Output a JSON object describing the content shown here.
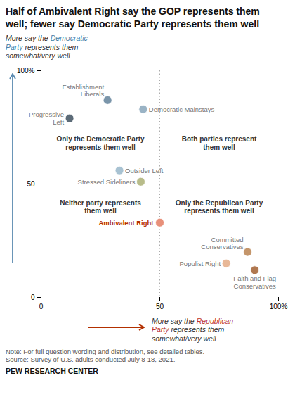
{
  "chart_data": {
    "type": "scatter",
    "title": "Half of Ambivalent Right say the GOP represents them\nwell; fewer say Democratic Party represents them well",
    "points": [
      {
        "label": "Progressive\nLeft",
        "x": 12,
        "y": 79,
        "color": "#5c6b78"
      },
      {
        "label": "Establishment\nLiberals",
        "x": 28,
        "y": 87,
        "color": "#7a95aa"
      },
      {
        "label": "Democratic Mainstays",
        "x": 43,
        "y": 83,
        "color": "#9ab3c5"
      },
      {
        "label": "Outsider Left",
        "x": 33,
        "y": 56,
        "color": "#a8c2d2"
      },
      {
        "label": "Stressed Sideliners",
        "x": 42,
        "y": 51,
        "color": "#b8bc8a"
      },
      {
        "label": "Ambivalent Right",
        "x": 50,
        "y": 33,
        "color": "#e8907a",
        "highlight": true
      },
      {
        "label": "Committed\nConservatives",
        "x": 87,
        "y": 20,
        "color": "#c4956a"
      },
      {
        "label": "Populist Right",
        "x": 78,
        "y": 15,
        "color": "#e8b898"
      },
      {
        "label": "Faith and Flag\nConservatives",
        "x": 90,
        "y": 12,
        "color": "#b07850"
      }
    ],
    "highlight_color": "#b33000",
    "xlim": [
      0,
      100
    ],
    "ylim": [
      0,
      100
    ],
    "xticks": [
      0,
      50,
      {
        "value": 100,
        "label": "100%"
      }
    ],
    "yticks": [
      0,
      50,
      {
        "value": 100,
        "label": "100%"
      }
    ],
    "grid": false,
    "dividers": {
      "x": 50,
      "y": 50
    },
    "annotations": [
      {
        "text": "Only the Democratic Party\nrepresents them well",
        "x": 25,
        "y": 68
      },
      {
        "text": "Both parties represent\nthem well",
        "x": 75,
        "y": 68
      },
      {
        "text": "Neither party represents\nthem well",
        "x": 25,
        "y": 40
      },
      {
        "text": "Only the Republican Party\nrepresents them well",
        "x": 75,
        "y": 40
      }
    ],
    "dem_note": {
      "arrow_color": "#5a8ab0",
      "lines": [
        [
          {
            "text": "More say the "
          },
          {
            "text": "Democratic",
            "color": "#4a7fa5"
          }
        ],
        [
          {
            "text": "Party",
            "color": "#4a7fa5"
          },
          {
            "text": " represents them"
          }
        ],
        [
          {
            "text": "somewhat/very well"
          }
        ]
      ]
    },
    "rep_note": {
      "arrow_color": "#b33000",
      "lines": [
        [
          {
            "text": "More say the "
          },
          {
            "text": "Republican",
            "color": "#c0392b"
          }
        ],
        [
          {
            "text": "Party",
            "color": "#c0392b"
          },
          {
            "text": " represents them"
          }
        ],
        [
          {
            "text": "somewhat/very well"
          }
        ]
      ]
    },
    "note": "Note: For full question wording and distribution, see detailed tables.\nSource: Survey of U.S. adults conducted July 8-18, 2021.",
    "source": "PEW RESEARCH CENTER"
  }
}
